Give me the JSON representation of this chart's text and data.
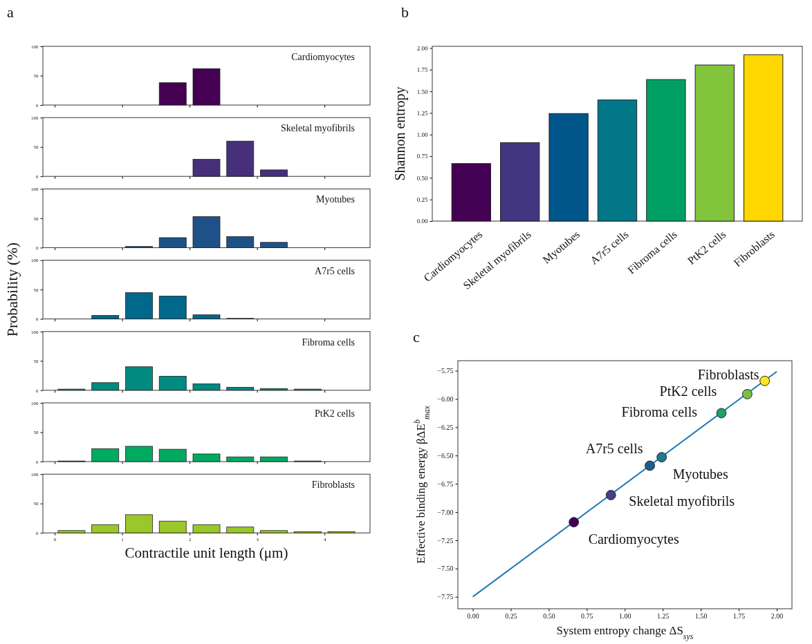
{
  "chart_data": [
    {
      "type": "histogram",
      "title": "Cardiomyocytes",
      "annotations": [
        "a"
      ],
      "bins": [
        0,
        0.5,
        1,
        1.5,
        2,
        2.5,
        3,
        3.5,
        4,
        4.5
      ],
      "values": [
        0,
        0,
        0,
        38,
        62,
        0,
        0,
        0,
        0
      ],
      "color": "#440154",
      "xlim": [
        -0.175,
        4.675
      ],
      "xticks": [
        0,
        1,
        2,
        3,
        4
      ],
      "ylim": [
        0,
        100
      ],
      "yticks": [
        0,
        50,
        100
      ],
      "tick_labels": "y"
    },
    {
      "type": "histogram",
      "title": "Skeletal myofibrils",
      "bins": [
        0,
        0.5,
        1,
        1.5,
        2,
        2.5,
        3,
        3.5,
        4,
        4.5
      ],
      "values": [
        0,
        0,
        0,
        0,
        29,
        60,
        11,
        0,
        0
      ],
      "color": "#47307a",
      "xlim": [
        -0.175,
        4.675
      ],
      "xticks": [
        0,
        1,
        2,
        3,
        4
      ],
      "ylim": [
        0,
        100
      ],
      "yticks": [
        0,
        50,
        100
      ],
      "tick_labels": "y"
    },
    {
      "type": "histogram",
      "title": "Myotubes",
      "bins": [
        0,
        0.5,
        1,
        1.5,
        2,
        2.5,
        3,
        3.5,
        4,
        4.5
      ],
      "values": [
        0,
        0,
        2,
        17,
        53,
        19,
        9,
        0,
        0
      ],
      "color": "#1f5189",
      "xlim": [
        -0.175,
        4.675
      ],
      "xticks": [
        0,
        1,
        2,
        3,
        4
      ],
      "ylim": [
        0,
        100
      ],
      "yticks": [
        0,
        50,
        100
      ],
      "tick_labels": "y"
    },
    {
      "type": "histogram",
      "title": "A7r5 cells",
      "ylabel": "Probability (%)",
      "bins": [
        0,
        0.5,
        1,
        1.5,
        2,
        2.5,
        3,
        3.5,
        4,
        4.5
      ],
      "values": [
        0,
        6,
        45,
        39,
        7,
        1,
        0,
        0,
        0
      ],
      "color": "#00688a",
      "xlim": [
        -0.175,
        4.675
      ],
      "xticks": [
        0,
        1,
        2,
        3,
        4
      ],
      "ylim": [
        0,
        100
      ],
      "yticks": [
        0,
        50,
        100
      ],
      "tick_labels": "y"
    },
    {
      "type": "histogram",
      "title": "Fibroma cells",
      "bins": [
        0,
        0.5,
        1,
        1.5,
        2,
        2.5,
        3,
        3.5,
        4,
        4.5
      ],
      "values": [
        2,
        13,
        40,
        24,
        11,
        5,
        3,
        2,
        0
      ],
      "color": "#008a80",
      "xlim": [
        -0.175,
        4.675
      ],
      "xticks": [
        0,
        1,
        2,
        3,
        4
      ],
      "ylim": [
        0,
        100
      ],
      "yticks": [
        0,
        50,
        100
      ],
      "tick_labels": "y"
    },
    {
      "type": "histogram",
      "title": "PtK2 cells",
      "bins": [
        0,
        0.5,
        1,
        1.5,
        2,
        2.5,
        3,
        3.5,
        4,
        4.5
      ],
      "values": [
        1,
        22,
        26,
        21,
        13,
        8,
        8,
        1,
        0
      ],
      "color": "#00aa5f",
      "xlim": [
        -0.175,
        4.675
      ],
      "xticks": [
        0,
        1,
        2,
        3,
        4
      ],
      "ylim": [
        0,
        100
      ],
      "yticks": [
        0,
        50,
        100
      ],
      "tick_labels": "y"
    },
    {
      "type": "histogram",
      "title": "Fibroblasts",
      "xlabel": "Contractile unit length (μm)",
      "bins": [
        0,
        0.5,
        1,
        1.5,
        2,
        2.5,
        3,
        3.5,
        4,
        4.5
      ],
      "values": [
        4,
        14,
        31,
        20,
        14,
        10,
        4,
        2,
        2
      ],
      "color": "#9ac72a",
      "xlim": [
        -0.175,
        4.675
      ],
      "xticks": [
        0,
        1,
        2,
        3,
        4
      ],
      "ylim": [
        0,
        100
      ],
      "yticks": [
        0,
        50,
        100
      ]
    },
    {
      "type": "bar",
      "annotations": [
        "b"
      ],
      "ylabel": "Shannon entropy",
      "categories": [
        "Cardiomyocytes",
        "Skeletal myofibrils",
        "Myotubes",
        "A7r5 cells",
        "Fibroma cells",
        "PtK2 cells",
        "Fibroblasts"
      ],
      "values": [
        0.665,
        0.907,
        1.243,
        1.4,
        1.636,
        1.804,
        1.923
      ],
      "colors": [
        "#440154",
        "#423680",
        "#01568c",
        "#017788",
        "#00a065",
        "#82c43c",
        "#ffd700"
      ],
      "ylim": [
        0,
        2.02
      ],
      "yticks": [
        {
          "value": 0,
          "label": "0.00"
        },
        {
          "value": 0.25,
          "label": "0.25"
        },
        {
          "value": 0.5,
          "label": "0.50"
        },
        {
          "value": 0.75,
          "label": "0.75"
        },
        {
          "value": 1,
          "label": "1.00"
        },
        {
          "value": 1.25,
          "label": "1.25"
        },
        {
          "value": 1.5,
          "label": "1.50"
        },
        {
          "value": 1.75,
          "label": "1.75"
        },
        {
          "value": 2,
          "label": "2.00"
        }
      ]
    },
    {
      "type": "scatter",
      "xlabel": "System entropy change ΔS$_{sys}$",
      "ylabel": "Effective binding energy βΔE$^{b}$$_{max}$",
      "annotations": [
        "c",
        {
          "text": "Cardiomyocytes",
          "x": 0.665,
          "y": -7.09
        },
        {
          "text": "Skeletal myofibrils",
          "x": 0.909,
          "y": -6.85
        },
        {
          "text": "A7r5 cells",
          "x": 1.165,
          "y": -6.59
        },
        {
          "text": "Myotubes",
          "x": 1.243,
          "y": -6.515
        },
        {
          "text": "Fibroma cells",
          "x": 1.636,
          "y": -6.125
        },
        {
          "text": "PtK2 cells",
          "x": 1.806,
          "y": -5.957
        },
        {
          "text": "Fibroblasts",
          "x": 1.921,
          "y": -5.84
        }
      ],
      "series": [
        {
          "type": "line",
          "color": "#1f77b4",
          "x": [
            0,
            2
          ],
          "values": [
            -7.75,
            -5.757
          ]
        },
        {
          "type": "scatter",
          "marker": "circle",
          "x": [
            0.665,
            0.909,
            1.165,
            1.243,
            1.636,
            1.806,
            1.921
          ],
          "values": [
            -7.09,
            -6.85,
            -6.59,
            -6.515,
            -6.125,
            -5.957,
            -5.84
          ],
          "colors": [
            "#440154",
            "#46408a",
            "#1b5f8c",
            "#1f7a8a",
            "#1fa06a",
            "#7ac143",
            "#fde725"
          ]
        }
      ],
      "xlim": [
        -0.098,
        2.1
      ],
      "xticks": [
        {
          "value": 0,
          "label": "0.00"
        },
        {
          "value": 0.25,
          "label": "0.25"
        },
        {
          "value": 0.5,
          "label": "0.50"
        },
        {
          "value": 0.75,
          "label": "0.75"
        },
        {
          "value": 1,
          "label": "1.00"
        },
        {
          "value": 1.25,
          "label": "1.25"
        },
        {
          "value": 1.5,
          "label": "1.50"
        },
        {
          "value": 1.75,
          "label": "1.75"
        },
        {
          "value": 2,
          "label": "2.00"
        }
      ],
      "ylim": [
        -7.856,
        -5.661
      ],
      "yticks": [
        {
          "value": -7.75,
          "label": "−7.75"
        },
        {
          "value": -7.5,
          "label": "−7.50"
        },
        {
          "value": -7.25,
          "label": "−7.25"
        },
        {
          "value": -7,
          "label": "−7.00"
        },
        {
          "value": -6.75,
          "label": "−6.75"
        },
        {
          "value": -6.5,
          "label": "−6.50"
        },
        {
          "value": -6.25,
          "label": "−6.25"
        },
        {
          "value": -6,
          "label": "−6.00"
        },
        {
          "value": -5.75,
          "label": "−5.75"
        }
      ]
    }
  ]
}
